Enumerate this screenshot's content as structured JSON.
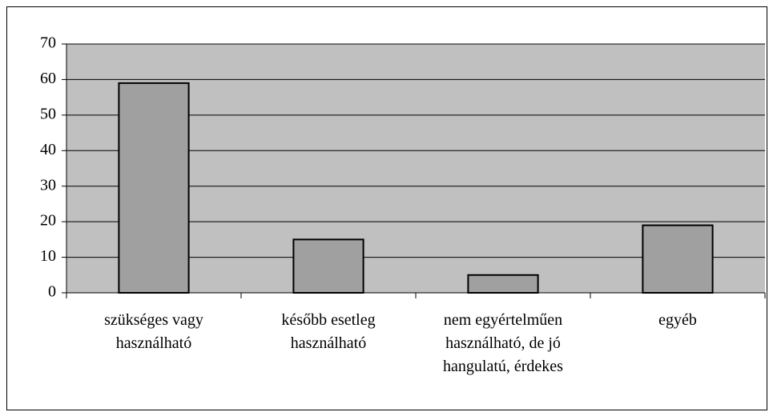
{
  "chart_data": {
    "type": "bar",
    "categories": [
      "szükséges vagy használható",
      "később esetleg használható",
      "nem egyértelműen használható, de jó hangulatú, érdekes",
      "egyéb"
    ],
    "values": [
      59,
      15,
      5,
      19
    ],
    "color": "#a0a0a0",
    "plot_background": "#c0c0c0",
    "ylim": [
      0,
      70
    ],
    "yticks": [
      0,
      10,
      20,
      30,
      40,
      50,
      60,
      70
    ],
    "grid": true
  }
}
